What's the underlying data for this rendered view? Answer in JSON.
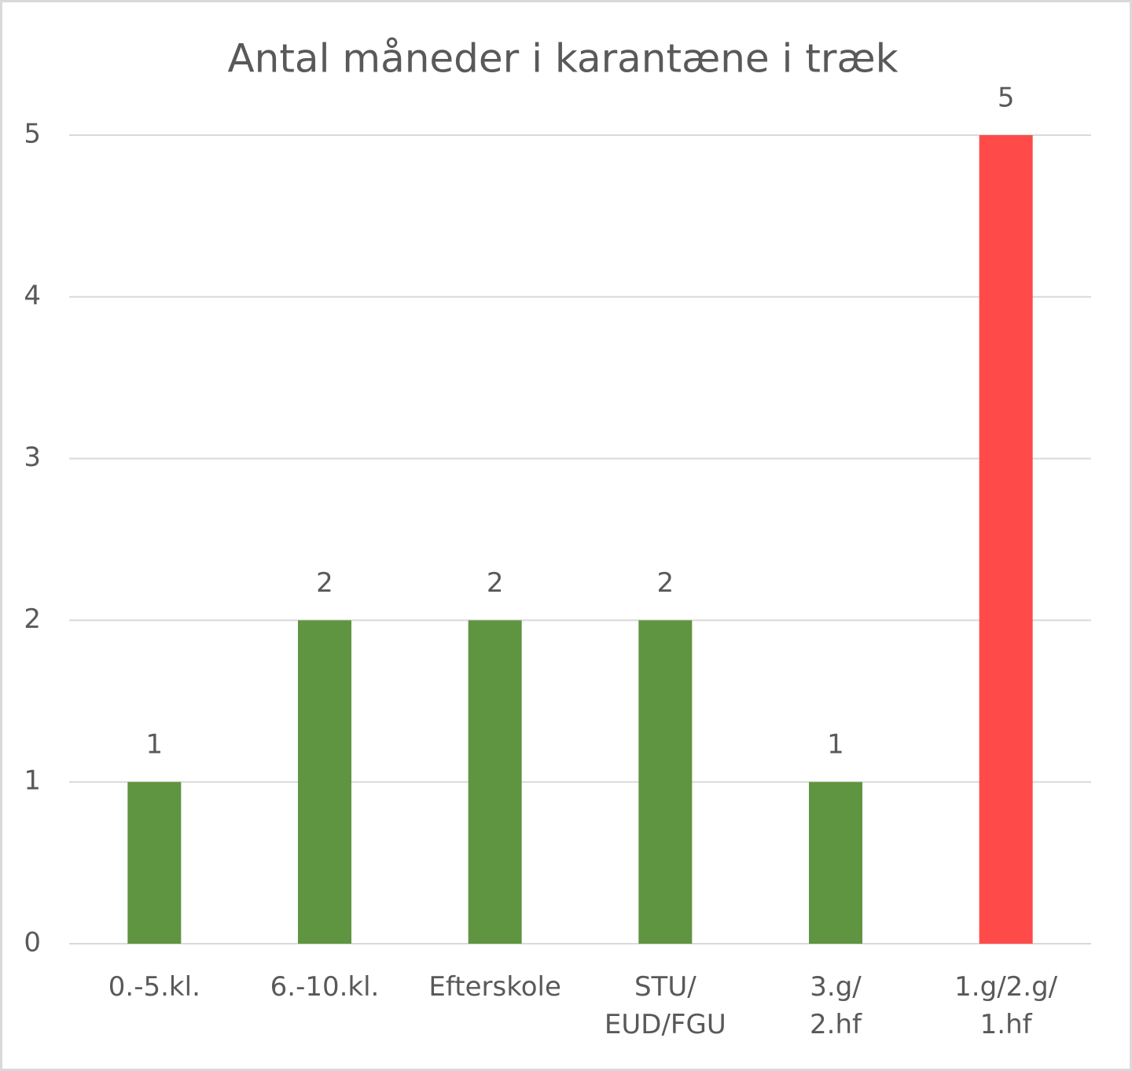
{
  "chart_data": {
    "type": "bar",
    "title": "Antal måneder i karantæne i træk",
    "categories": [
      "0.-5.kl.",
      "6.-10.kl.",
      "Efterskole",
      "STU/\nEUD/FGU",
      "3.g/\n2.hf",
      "1.g/2.g/\n1.hf"
    ],
    "values": [
      1,
      2,
      2,
      2,
      1,
      5
    ],
    "colors": [
      "#5f9440",
      "#5f9440",
      "#5f9440",
      "#5f9440",
      "#5f9440",
      "#ff4a4a"
    ],
    "ylim": [
      0,
      5
    ],
    "yticks": [
      0,
      1,
      2,
      3,
      4,
      5
    ],
    "grid": true
  }
}
